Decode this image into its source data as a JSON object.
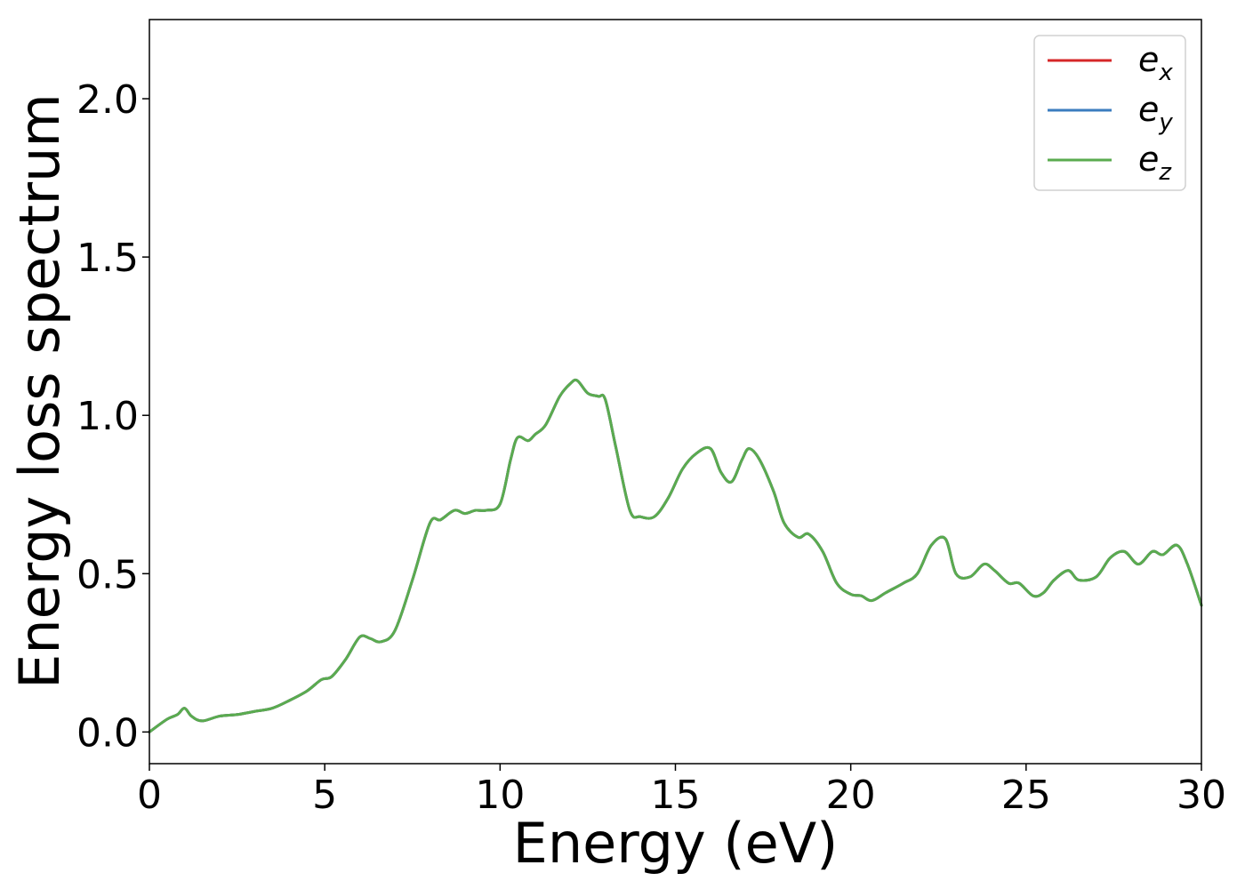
{
  "chart_data": {
    "type": "line",
    "title": "",
    "xlabel": "Energy (eV)",
    "ylabel": "Energy loss spectrum",
    "xlim": [
      0,
      30
    ],
    "ylim": [
      -0.1,
      2.25
    ],
    "xticks": [
      0,
      5,
      10,
      15,
      20,
      25,
      30
    ],
    "xtick_labels": [
      "0",
      "5",
      "10",
      "15",
      "20",
      "25",
      "30"
    ],
    "yticks": [
      0.0,
      0.5,
      1.0,
      1.5,
      2.0
    ],
    "ytick_labels": [
      "0.0",
      "0.5",
      "1.0",
      "1.5",
      "2.0"
    ],
    "grid": false,
    "legend_position": "top-right",
    "x": [
      0,
      0.5,
      0.8,
      1.0,
      1.2,
      1.5,
      2.0,
      2.5,
      3.0,
      3.5,
      4.0,
      4.5,
      4.9,
      5.2,
      5.6,
      6.0,
      6.3,
      6.6,
      7.0,
      7.5,
      8.0,
      8.3,
      8.7,
      9.0,
      9.3,
      9.6,
      10.0,
      10.3,
      10.5,
      10.8,
      11.0,
      11.3,
      11.7,
      12.0,
      12.2,
      12.5,
      12.8,
      13.0,
      13.3,
      13.7,
      14.0,
      14.4,
      14.8,
      15.2,
      15.6,
      16.0,
      16.3,
      16.6,
      16.9,
      17.1,
      17.4,
      17.8,
      18.1,
      18.5,
      18.8,
      19.2,
      19.6,
      20.0,
      20.3,
      20.6,
      21.0,
      21.5,
      21.9,
      22.3,
      22.7,
      23.0,
      23.4,
      23.8,
      24.1,
      24.5,
      24.8,
      25.2,
      25.5,
      25.8,
      26.2,
      26.5,
      27.0,
      27.4,
      27.8,
      28.2,
      28.6,
      28.9,
      29.3,
      29.6,
      30.0
    ],
    "series": [
      {
        "name": "e_x",
        "legend_base": "e",
        "legend_sub": "x",
        "color": "#d62728",
        "values": [
          0.0,
          0.04,
          0.055,
          0.075,
          0.05,
          0.035,
          0.05,
          0.055,
          0.065,
          0.075,
          0.1,
          0.13,
          0.165,
          0.175,
          0.23,
          0.3,
          0.295,
          0.285,
          0.32,
          0.48,
          0.66,
          0.67,
          0.7,
          0.69,
          0.7,
          0.7,
          0.72,
          0.86,
          0.93,
          0.92,
          0.94,
          0.97,
          1.06,
          1.1,
          1.11,
          1.07,
          1.06,
          1.05,
          0.9,
          0.7,
          0.68,
          0.68,
          0.74,
          0.83,
          0.88,
          0.895,
          0.82,
          0.79,
          0.86,
          0.895,
          0.86,
          0.76,
          0.66,
          0.615,
          0.625,
          0.57,
          0.47,
          0.435,
          0.43,
          0.415,
          0.44,
          0.47,
          0.5,
          0.59,
          0.61,
          0.5,
          0.49,
          0.53,
          0.51,
          0.47,
          0.47,
          0.43,
          0.44,
          0.48,
          0.51,
          0.48,
          0.49,
          0.55,
          0.57,
          0.53,
          0.57,
          0.56,
          0.59,
          0.53,
          0.4
        ]
      },
      {
        "name": "e_y",
        "legend_base": "e",
        "legend_sub": "y",
        "color": "#3b7dbf",
        "values": [
          0.0,
          0.04,
          0.055,
          0.075,
          0.05,
          0.035,
          0.05,
          0.055,
          0.065,
          0.075,
          0.1,
          0.13,
          0.165,
          0.175,
          0.23,
          0.3,
          0.295,
          0.285,
          0.32,
          0.48,
          0.66,
          0.67,
          0.7,
          0.69,
          0.7,
          0.7,
          0.72,
          0.86,
          0.93,
          0.92,
          0.94,
          0.97,
          1.06,
          1.1,
          1.11,
          1.07,
          1.06,
          1.05,
          0.9,
          0.7,
          0.68,
          0.68,
          0.74,
          0.83,
          0.88,
          0.895,
          0.82,
          0.79,
          0.86,
          0.895,
          0.86,
          0.76,
          0.66,
          0.615,
          0.625,
          0.57,
          0.47,
          0.435,
          0.43,
          0.415,
          0.44,
          0.47,
          0.5,
          0.59,
          0.61,
          0.5,
          0.49,
          0.53,
          0.51,
          0.47,
          0.47,
          0.43,
          0.44,
          0.48,
          0.51,
          0.48,
          0.49,
          0.55,
          0.57,
          0.53,
          0.57,
          0.56,
          0.59,
          0.53,
          0.4
        ]
      },
      {
        "name": "e_z",
        "legend_base": "e",
        "legend_sub": "z",
        "color": "#5aab4f",
        "values": [
          0.0,
          0.04,
          0.055,
          0.075,
          0.05,
          0.035,
          0.05,
          0.055,
          0.065,
          0.075,
          0.1,
          0.13,
          0.165,
          0.175,
          0.23,
          0.3,
          0.295,
          0.285,
          0.32,
          0.48,
          0.66,
          0.67,
          0.7,
          0.69,
          0.7,
          0.7,
          0.72,
          0.86,
          0.93,
          0.92,
          0.94,
          0.97,
          1.06,
          1.1,
          1.11,
          1.07,
          1.06,
          1.05,
          0.9,
          0.7,
          0.68,
          0.68,
          0.74,
          0.83,
          0.88,
          0.895,
          0.82,
          0.79,
          0.86,
          0.895,
          0.86,
          0.76,
          0.66,
          0.615,
          0.625,
          0.57,
          0.47,
          0.435,
          0.43,
          0.415,
          0.44,
          0.47,
          0.5,
          0.59,
          0.61,
          0.5,
          0.49,
          0.53,
          0.51,
          0.47,
          0.47,
          0.43,
          0.44,
          0.48,
          0.51,
          0.48,
          0.49,
          0.55,
          0.57,
          0.53,
          0.57,
          0.56,
          0.59,
          0.53,
          0.4
        ]
      }
    ]
  }
}
